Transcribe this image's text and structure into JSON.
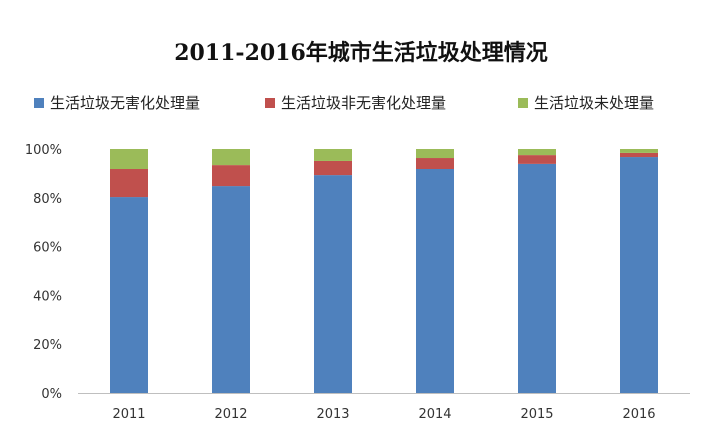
{
  "chart_data": {
    "type": "bar",
    "stacked": true,
    "title": "2011-2016年城市生活垃圾处理情况",
    "categories": [
      "2011",
      "2012",
      "2013",
      "2014",
      "2015",
      "2016"
    ],
    "series": [
      {
        "name": "生活垃圾无害化处理量",
        "color": "#4f81bd",
        "values": [
          80.3,
          84.8,
          89.3,
          91.8,
          93.9,
          96.7
        ]
      },
      {
        "name": "生活垃圾非无害化处理量",
        "color": "#c0504d",
        "values": [
          11.5,
          8.6,
          5.8,
          4.5,
          3.6,
          1.7
        ]
      },
      {
        "name": "生活垃圾未处理量",
        "color": "#9bbb59",
        "values": [
          8.2,
          6.6,
          4.9,
          3.7,
          2.5,
          1.6
        ]
      }
    ],
    "yticks": [
      "0%",
      "20%",
      "40%",
      "60%",
      "80%",
      "100%"
    ],
    "ylim": [
      0,
      100
    ],
    "grid": false,
    "legend": "top"
  }
}
